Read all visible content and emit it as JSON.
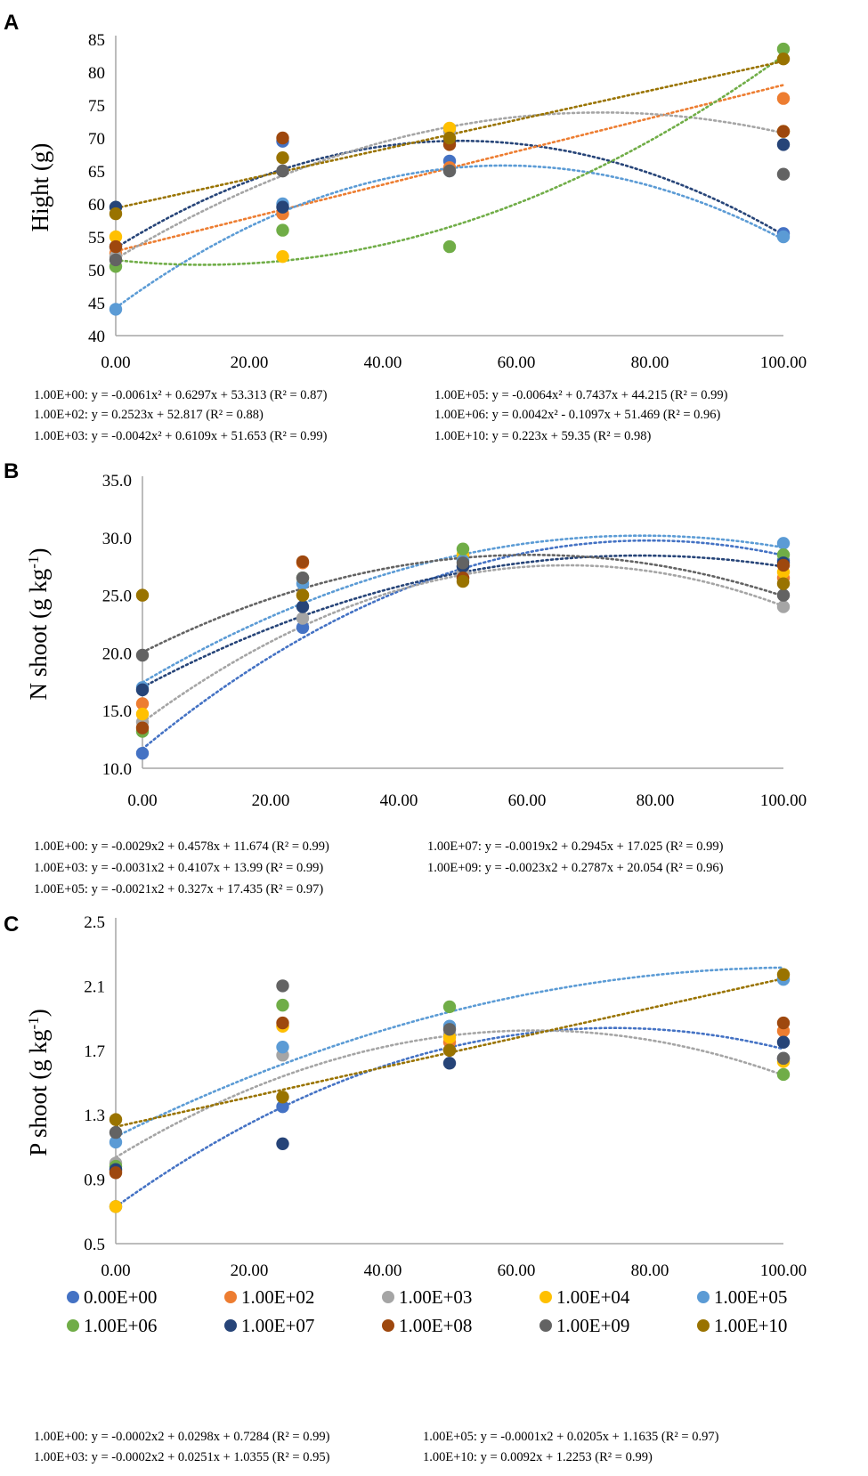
{
  "colors": {
    "0.00E+00": "#4472c4",
    "1.00E+02": "#ed7d31",
    "1.00E+03": "#a5a5a5",
    "1.00E+04": "#ffc000",
    "1.00E+05": "#5b9bd5",
    "1.00E+06": "#70ad47",
    "1.00E+07": "#264478",
    "1.00E+08": "#9e480e",
    "1.00E+09": "#636363",
    "1.00E+10": "#997300"
  },
  "legend": [
    "0.00E+00",
    "1.00E+02",
    "1.00E+03",
    "1.00E+04",
    "1.00E+05",
    "1.00E+06",
    "1.00E+07",
    "1.00E+08",
    "1.00E+09",
    "1.00E+10"
  ],
  "chart_data": [
    {
      "type": "scatter",
      "panel": "A",
      "title": "",
      "xlabel": "",
      "ylabel": "Hight (g)",
      "xlim": [
        0,
        100
      ],
      "ylim": [
        40,
        85
      ],
      "xticks": [
        "0.00",
        "20.00",
        "40.00",
        "60.00",
        "80.00",
        "100.00"
      ],
      "yticks": [
        "40",
        "45",
        "50",
        "55",
        "60",
        "65",
        "70",
        "75",
        "80",
        "85"
      ],
      "x": [
        0,
        25,
        50,
        100
      ],
      "series": [
        {
          "name": "0.00E+00",
          "values": [
            53.5,
            69.5,
            66.5,
            55.5
          ]
        },
        {
          "name": "1.00E+02",
          "values": [
            52.5,
            58.5,
            65.5,
            76.0
          ]
        },
        {
          "name": "1.00E+03",
          "values": [
            52.0,
            65.0,
            71.0,
            71.0
          ]
        },
        {
          "name": "1.00E+04",
          "values": [
            55.0,
            52.0,
            71.5,
            71.0
          ]
        },
        {
          "name": "1.00E+05",
          "values": [
            44.0,
            60.0,
            65.0,
            55.0
          ]
        },
        {
          "name": "1.00E+06",
          "values": [
            50.5,
            56.0,
            53.5,
            83.5
          ]
        },
        {
          "name": "1.00E+07",
          "values": [
            59.5,
            59.5,
            69.5,
            69.0
          ]
        },
        {
          "name": "1.00E+08",
          "values": [
            53.5,
            70.0,
            69.0,
            71.0
          ]
        },
        {
          "name": "1.00E+09",
          "values": [
            51.5,
            65.0,
            65.0,
            64.5
          ]
        },
        {
          "name": "1.00E+10",
          "values": [
            58.5,
            67.0,
            70.0,
            82.0
          ]
        }
      ],
      "trendlines": [
        {
          "series": "1.00E+00",
          "color_key": "1.00E+07",
          "a": -0.0061,
          "b": 0.6297,
          "c": 53.313
        },
        {
          "series": "1.00E+02",
          "color_key": "1.00E+02",
          "a": 0,
          "b": 0.2523,
          "c": 52.817
        },
        {
          "series": "1.00E+03",
          "color_key": "1.00E+03",
          "a": -0.0042,
          "b": 0.6109,
          "c": 51.653
        },
        {
          "series": "1.00E+05",
          "color_key": "1.00E+05",
          "a": -0.0064,
          "b": 0.7437,
          "c": 44.215
        },
        {
          "series": "1.00E+06",
          "color_key": "1.00E+06",
          "a": 0.0042,
          "b": -0.1097,
          "c": 51.469
        },
        {
          "series": "1.00E+10",
          "color_key": "1.00E+10",
          "a": 0,
          "b": 0.223,
          "c": 59.35
        }
      ],
      "equations": [
        [
          "1.00E+00: y = -0.0061x² + 0.6297x + 53.313 (R² = 0.87)",
          "1.00E+05: y = -0.0064x² + 0.7437x + 44.215 (R² = 0.99)"
        ],
        [
          "1.00E+02: y = 0.2523x + 52.817 (R² = 0.88)",
          "1.00E+06: y = 0.0042x² - 0.1097x + 51.469 (R² = 0.96)"
        ],
        [
          "1.00E+03: y = -0.0042x² + 0.6109x + 51.653 (R² = 0.99)",
          "1.00E+10: y = 0.223x + 59.35 (R² = 0.98)"
        ]
      ]
    },
    {
      "type": "scatter",
      "panel": "B",
      "title": "",
      "xlabel": "",
      "ylabel": "N shoot (g kg-1)",
      "xlim": [
        0,
        100
      ],
      "ylim": [
        10,
        35
      ],
      "xticks": [
        "0.00",
        "20.00",
        "40.00",
        "60.00",
        "80.00",
        "100.00"
      ],
      "yticks": [
        "10.0",
        "15.0",
        "20.0",
        "25.0",
        "30.0",
        "35.0"
      ],
      "x": [
        0,
        25,
        50,
        100
      ],
      "series": [
        {
          "name": "0.00E+00",
          "values": [
            11.3,
            22.2,
            27.5,
            28.0
          ]
        },
        {
          "name": "1.00E+02",
          "values": [
            15.6,
            27.8,
            26.5,
            26.5
          ]
        },
        {
          "name": "1.00E+03",
          "values": [
            14.0,
            23.0,
            27.0,
            24.0
          ]
        },
        {
          "name": "1.00E+04",
          "values": [
            14.7,
            25.0,
            28.5,
            27.0
          ]
        },
        {
          "name": "1.00E+05",
          "values": [
            17.0,
            26.0,
            28.0,
            29.5
          ]
        },
        {
          "name": "1.00E+06",
          "values": [
            13.2,
            26.5,
            29.0,
            28.5
          ]
        },
        {
          "name": "1.00E+07",
          "values": [
            16.8,
            24.0,
            27.5,
            27.8
          ]
        },
        {
          "name": "1.00E+08",
          "values": [
            13.5,
            27.9,
            26.5,
            27.6
          ]
        },
        {
          "name": "1.00E+09",
          "values": [
            19.8,
            26.5,
            27.8,
            25.0
          ]
        },
        {
          "name": "1.00E+10",
          "values": [
            25.0,
            25.0,
            26.2,
            26.0
          ]
        }
      ],
      "trendlines": [
        {
          "series": "1.00E+00",
          "color_key": "0.00E+00",
          "a": -0.0029,
          "b": 0.4578,
          "c": 11.674
        },
        {
          "series": "1.00E+03",
          "color_key": "1.00E+03",
          "a": -0.0031,
          "b": 0.4107,
          "c": 13.99
        },
        {
          "series": "1.00E+05",
          "color_key": "1.00E+05",
          "a": -0.0021,
          "b": 0.327,
          "c": 17.435
        },
        {
          "series": "1.00E+07",
          "color_key": "1.00E+07",
          "a": -0.0019,
          "b": 0.2945,
          "c": 17.025
        },
        {
          "series": "1.00E+09",
          "color_key": "1.00E+09",
          "a": -0.0023,
          "b": 0.2787,
          "c": 20.054
        }
      ],
      "equations": [
        [
          "1.00E+00: y = -0.0029x2 + 0.4578x + 11.674 (R² = 0.99)",
          "1.00E+07: y = -0.0019x2 + 0.2945x + 17.025 (R² = 0.99)"
        ],
        [
          "1.00E+03: y = -0.0031x2 + 0.4107x + 13.99 (R² = 0.99)",
          "1.00E+09: y = -0.0023x2 + 0.2787x + 20.054 (R² = 0.96)"
        ],
        [
          "1.00E+05: y = -0.0021x2 + 0.327x + 17.435 (R² = 0.97)",
          ""
        ]
      ]
    },
    {
      "type": "scatter",
      "panel": "C",
      "title": "",
      "xlabel": "",
      "ylabel": "P shoot (g kg-1)",
      "xlim": [
        0,
        100
      ],
      "ylim": [
        0.5,
        2.5
      ],
      "xticks": [
        "0.00",
        "20.00",
        "40.00",
        "60.00",
        "80.00",
        "100.00"
      ],
      "yticks": [
        "0.5",
        "0.9",
        "1.3",
        "1.7",
        "2.1",
        "2.5"
      ],
      "x": [
        0,
        25,
        50,
        100
      ],
      "series": [
        {
          "name": "0.00E+00",
          "values": [
            0.73,
            1.35,
            1.7,
            1.65
          ]
        },
        {
          "name": "1.00E+02",
          "values": [
            0.95,
            1.85,
            1.75,
            1.82
          ]
        },
        {
          "name": "1.00E+03",
          "values": [
            1.0,
            1.67,
            1.8,
            1.65
          ]
        },
        {
          "name": "1.00E+04",
          "values": [
            0.73,
            1.85,
            1.78,
            1.63
          ]
        },
        {
          "name": "1.00E+05",
          "values": [
            1.13,
            1.72,
            1.85,
            2.14
          ]
        },
        {
          "name": "1.00E+06",
          "values": [
            0.98,
            1.98,
            1.97,
            1.55
          ]
        },
        {
          "name": "1.00E+07",
          "values": [
            0.96,
            1.12,
            1.62,
            1.75
          ]
        },
        {
          "name": "1.00E+08",
          "values": [
            0.94,
            1.87,
            1.7,
            1.87
          ]
        },
        {
          "name": "1.00E+09",
          "values": [
            1.19,
            2.1,
            1.83,
            1.65
          ]
        },
        {
          "name": "1.00E+10",
          "values": [
            1.27,
            1.41,
            1.7,
            2.17
          ]
        }
      ],
      "trendlines": [
        {
          "series": "1.00E+00",
          "color_key": "0.00E+00",
          "a": -0.0002,
          "b": 0.0298,
          "c": 0.7284
        },
        {
          "series": "1.00E+03",
          "color_key": "1.00E+03",
          "a": -0.0002,
          "b": 0.0251,
          "c": 1.0355
        },
        {
          "series": "1.00E+05",
          "color_key": "1.00E+05",
          "a": -0.0001,
          "b": 0.0205,
          "c": 1.1635
        },
        {
          "series": "1.00E+10",
          "color_key": "1.00E+10",
          "a": 0,
          "b": 0.0092,
          "c": 1.2253
        }
      ],
      "equations": [
        [
          "1.00E+00: y = -0.0002x2 + 0.0298x + 0.7284 (R² = 0.99)",
          "1.00E+05: y = -0.0001x2 + 0.0205x + 1.1635 (R² = 0.97)"
        ],
        [
          "1.00E+03: y = -0.0002x2 + 0.0251x + 1.0355 (R² = 0.95)",
          "1.00E+10: y = 0.0092x + 1.2253 (R² = 0.99)"
        ]
      ]
    }
  ]
}
